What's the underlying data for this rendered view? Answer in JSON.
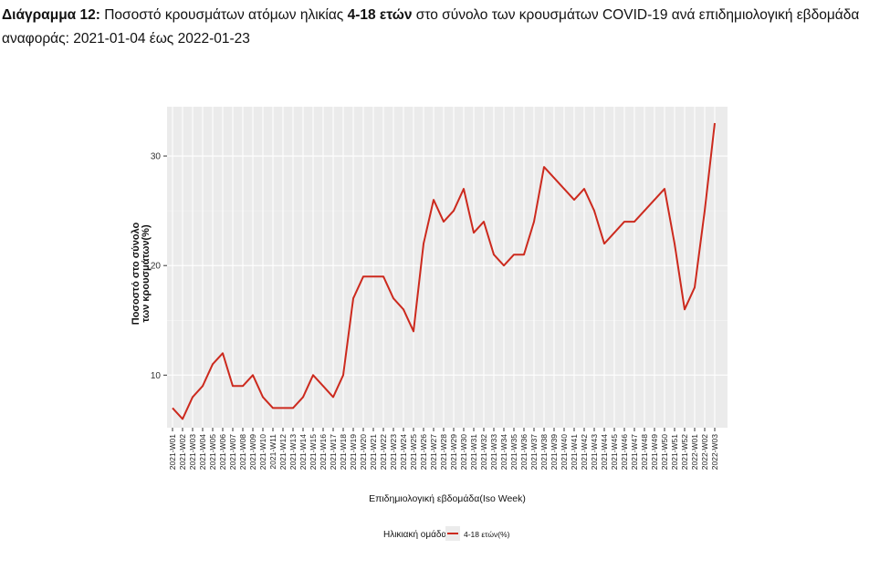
{
  "title": {
    "prefix": "Διάγραμμα 12:",
    "text_a": " Ποσοστό κρουσμάτων ατόμων ηλικίας ",
    "bold_mid": "4-18 ετών",
    "text_b": " στο σύνολο των κρουσμάτων COVID-19 ανά επιδημιολογική εβδομάδα",
    "line2": "αναφοράς: 2021-01-04 έως 2022-01-23"
  },
  "chart_data": {
    "type": "line",
    "xlabel": "Επιδημιολογική εβδομάδα(Iso Week)",
    "ylabel_line1": "Ποσοστό στο σύνολο",
    "ylabel_line2": "των κρουσμάτων(%)",
    "ylim": [
      5.2,
      34.5
    ],
    "yticks": [
      10,
      20,
      30
    ],
    "grid": true,
    "legend": {
      "title": "Ηλικιακή ομάδα",
      "position": "bottom"
    },
    "categories": [
      "2021-W01",
      "2021-W02",
      "2021-W03",
      "2021-W04",
      "2021-W05",
      "2021-W06",
      "2021-W07",
      "2021-W08",
      "2021-W09",
      "2021-W10",
      "2021-W11",
      "2021-W12",
      "2021-W13",
      "2021-W14",
      "2021-W15",
      "2021-W16",
      "2021-W17",
      "2021-W18",
      "2021-W19",
      "2021-W20",
      "2021-W21",
      "2021-W22",
      "2021-W23",
      "2021-W24",
      "2021-W25",
      "2021-W26",
      "2021-W27",
      "2021-W28",
      "2021-W29",
      "2021-W30",
      "2021-W31",
      "2021-W32",
      "2021-W33",
      "2021-W34",
      "2021-W35",
      "2021-W36",
      "2021-W37",
      "2021-W38",
      "2021-W39",
      "2021-W40",
      "2021-W41",
      "2021-W42",
      "2021-W43",
      "2021-W44",
      "2021-W45",
      "2021-W46",
      "2021-W47",
      "2021-W48",
      "2021-W49",
      "2021-W50",
      "2021-W51",
      "2021-W52",
      "2022-W01",
      "2022-W02",
      "2022-W03"
    ],
    "series": [
      {
        "name": "4-18 ετών(%)",
        "color": "#cc2a1e",
        "values": [
          7,
          6,
          8,
          9,
          11,
          12,
          9,
          9,
          10,
          8,
          7,
          7,
          7,
          8,
          10,
          9,
          8,
          10,
          17,
          19,
          19,
          19,
          17,
          16,
          14,
          22,
          26,
          24,
          25,
          27,
          23,
          24,
          21,
          20,
          21,
          21,
          24,
          29,
          28,
          27,
          26,
          27,
          25,
          22,
          23,
          24,
          24,
          25,
          26,
          27,
          22,
          16,
          18,
          25,
          33
        ]
      }
    ]
  }
}
